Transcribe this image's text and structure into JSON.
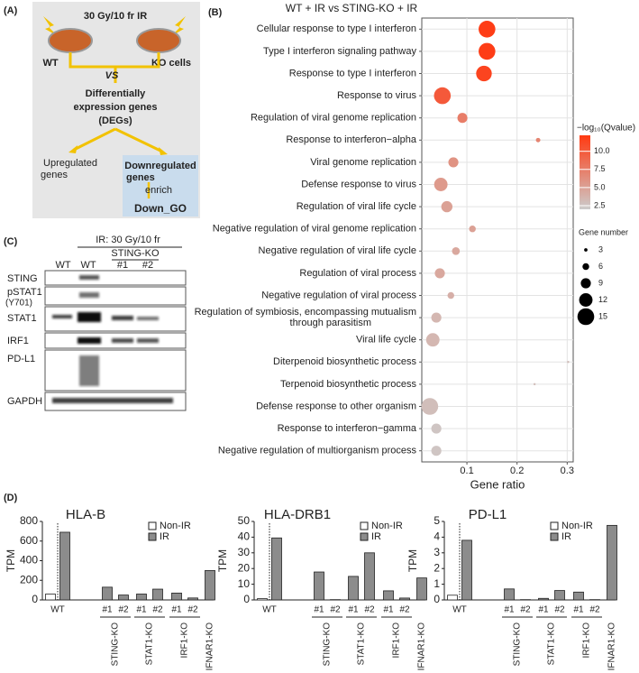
{
  "panels": {
    "A": {
      "label": "(A)",
      "treatment": "30 Gy/10 fr IR",
      "wt": "WT",
      "ko": "KO cells",
      "vs": "VS",
      "degs": [
        "Differentially",
        "expression genes",
        "(DEGs)"
      ],
      "up": [
        "Upregulated",
        "genes"
      ],
      "down": [
        "Downregulated",
        "genes"
      ],
      "enrich": "enrich",
      "go": "Down_GO"
    },
    "B": {
      "label": "(B)"
    },
    "C": {
      "label": "(C)",
      "treatment": "IR: 30 Gy/10 fr",
      "lanes": [
        "WT",
        "WT",
        "#1",
        "#2"
      ],
      "group": "STING-KO",
      "rows": [
        "STING",
        "pSTAT1",
        "(Y701)",
        "STAT1",
        "IRF1",
        "PD-L1",
        "GAPDH"
      ]
    },
    "D": {
      "label": "(D)"
    }
  },
  "chart_data": [
    {
      "type": "dot",
      "title": "WT + IR vs STING-KO + IR",
      "x_label": "Gene ratio",
      "categories": [
        "Cellular response to type I interferon",
        "Type I interferon signaling pathway",
        "Response to type I interferon",
        "Response to virus",
        "Regulation of viral genome replication",
        "Response to interferon−alpha",
        "Viral genome replication",
        "Defense response to virus",
        "Regulation of viral life cycle",
        "Negative regulation of viral genome replication",
        "Negative regulation of viral life cycle",
        "Regulation of viral process",
        "Negative regulation of viral process",
        "Regulation of symbiosis, encompassing mutualism through parasitism",
        "Viral life cycle",
        "Diterpenoid biosynthetic process",
        "Terpenoid biosynthetic process",
        "Defense response to other organism",
        "Response to interferon−gamma",
        "Negative regulation of multiorganism process"
      ],
      "x": [
        0.14,
        0.14,
        0.134,
        0.051,
        0.091,
        0.242,
        0.073,
        0.048,
        0.06,
        0.111,
        0.078,
        0.046,
        0.068,
        0.039,
        0.032,
        0.302,
        0.235,
        0.026,
        0.039,
        0.039
      ],
      "size": [
        15,
        15,
        14,
        15,
        9,
        4,
        9,
        12,
        10,
        6,
        7,
        9,
        6,
        9,
        12,
        2,
        2,
        15,
        9,
        9
      ],
      "qvalue": [
        12,
        12,
        11.5,
        10,
        7.5,
        7,
        6,
        5.5,
        5,
        5,
        4.5,
        4.5,
        4,
        3.5,
        3.5,
        3,
        3,
        3,
        2.5,
        2.5
      ],
      "xlim": [
        0.01,
        0.312
      ],
      "xticks": [
        0.1,
        0.2,
        0.3
      ],
      "grid": true,
      "color_legend": {
        "title": "−log₁₀(Qvalue)",
        "clim": [
          2,
          12.2
        ],
        "colors": [
          "#cccccc",
          "#ff3a12"
        ],
        "ticks": [
          2.5,
          {
            "value": 5,
            "label": "5.0"
          },
          7.5,
          {
            "value": 10,
            "label": "10.0"
          }
        ]
      },
      "size_legend": {
        "title": "Gene number",
        "values": [
          3,
          6,
          9,
          12,
          15
        ]
      }
    },
    {
      "type": "bar",
      "title": "HLA-B",
      "y_label": "TPM",
      "categories": [
        "WT",
        "#1",
        "#2",
        "#1",
        "#2",
        "#1",
        "#2",
        null
      ],
      "groups": [
        "STING-KO",
        "STAT1-KO",
        "IRF1-KO",
        "IFNAR1-KO"
      ],
      "series": [
        {
          "name": "Non-IR",
          "color": "#ffffff",
          "values": [
            60,
            null,
            null,
            null,
            null,
            null,
            null,
            null
          ]
        },
        {
          "name": "IR",
          "color": "#8c8c8c",
          "values": [
            690,
            130,
            50,
            60,
            110,
            70,
            20,
            300
          ]
        }
      ],
      "ylim": [
        0,
        800
      ],
      "yticks": [
        0,
        200,
        400,
        600,
        800
      ],
      "legend": "upper-right"
    },
    {
      "type": "bar",
      "title": "HLA-DRB1",
      "y_label": "TPM",
      "categories": [
        "WT",
        "#1",
        "#2",
        "#1",
        "#2",
        "#1",
        "#2",
        null
      ],
      "groups": [
        "STING-KO",
        "STAT1-KO",
        "IRF1-KO",
        "IFNAR1-KO"
      ],
      "series": [
        {
          "name": "Non-IR",
          "color": "#ffffff",
          "values": [
            0.8,
            null,
            null,
            null,
            null,
            null,
            null,
            null
          ]
        },
        {
          "name": "IR",
          "color": "#8c8c8c",
          "values": [
            39.5,
            17.8,
            0.2,
            15,
            30,
            5.8,
            1.2,
            14
          ]
        }
      ],
      "ylim": [
        0,
        50
      ],
      "yticks": [
        0,
        10,
        20,
        30,
        40,
        50
      ],
      "legend": "upper-right"
    },
    {
      "type": "bar",
      "title": "PD-L1",
      "y_label": "TPM",
      "categories": [
        "WT",
        "#1",
        "#2",
        "#1",
        "#2",
        "#1",
        "#2",
        null
      ],
      "groups": [
        "STING-KO",
        "STAT1-KO",
        "IRF1-KO",
        "IFNAR1-KO"
      ],
      "series": [
        {
          "name": "Non-IR",
          "color": "#ffffff",
          "values": [
            0.3,
            null,
            null,
            null,
            null,
            null,
            null,
            null
          ]
        },
        {
          "name": "IR",
          "color": "#8c8c8c",
          "values": [
            3.8,
            0.7,
            0.02,
            0.1,
            0.6,
            0.5,
            0.02,
            4.75
          ]
        }
      ],
      "ylim": [
        0,
        5
      ],
      "yticks": [
        0,
        1,
        2,
        3,
        4,
        5
      ],
      "legend": "upper-right"
    }
  ]
}
